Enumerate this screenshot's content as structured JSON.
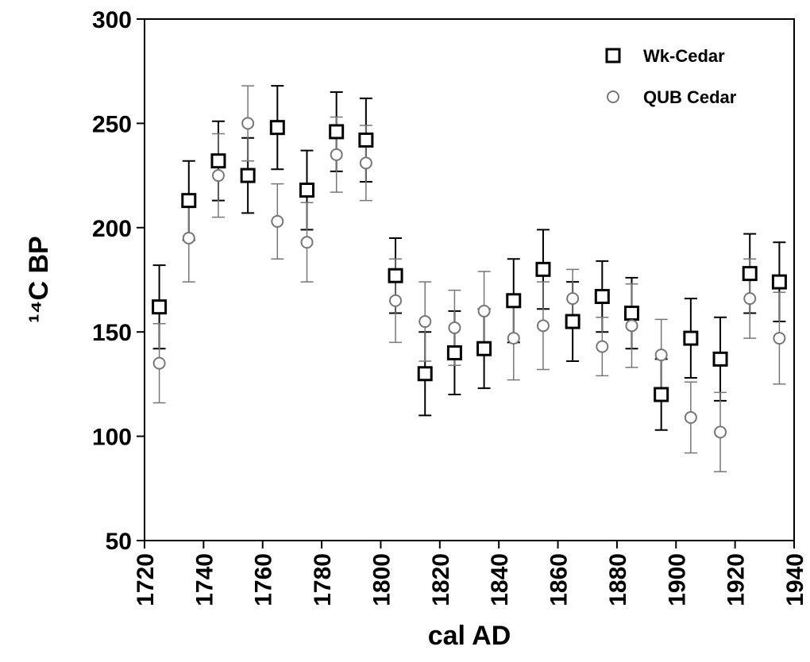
{
  "chart_data": {
    "type": "scatter",
    "x_label": "cal AD",
    "y_label": "¹⁴C BP",
    "x": [
      1725,
      1735,
      1745,
      1755,
      1765,
      1775,
      1785,
      1795,
      1805,
      1815,
      1825,
      1835,
      1845,
      1855,
      1865,
      1875,
      1885,
      1895,
      1905,
      1915,
      1925,
      1935
    ],
    "series": [
      {
        "name": "Wk-Cedar",
        "color": "#000000",
        "marker": "square",
        "values": [
          162,
          213,
          232,
          225,
          248,
          218,
          246,
          242,
          177,
          130,
          140,
          142,
          165,
          180,
          155,
          167,
          159,
          120,
          147,
          137,
          178,
          174
        ],
        "errors": [
          20,
          19,
          19,
          18,
          20,
          19,
          19,
          20,
          18,
          20,
          20,
          19,
          20,
          19,
          19,
          17,
          17,
          17,
          19,
          20,
          19,
          19
        ]
      },
      {
        "name": "QUB Cedar",
        "color": "#777777",
        "marker": "circle",
        "values": [
          135,
          195,
          225,
          250,
          203,
          193,
          235,
          231,
          165,
          155,
          152,
          160,
          147,
          153,
          166,
          143,
          153,
          139,
          109,
          102,
          166,
          147
        ],
        "errors": [
          19,
          21,
          20,
          18,
          18,
          19,
          18,
          18,
          20,
          19,
          18,
          19,
          20,
          21,
          14,
          14,
          20,
          17,
          17,
          19,
          19,
          22
        ]
      }
    ],
    "xlim": [
      1720,
      1940
    ],
    "xticks": [
      1720,
      1740,
      1760,
      1780,
      1800,
      1820,
      1840,
      1860,
      1880,
      1900,
      1920,
      1940
    ],
    "ylim": [
      50,
      300
    ],
    "yticks": [
      50,
      100,
      150,
      200,
      250,
      300
    ],
    "legend": "upper right",
    "grid": false
  }
}
